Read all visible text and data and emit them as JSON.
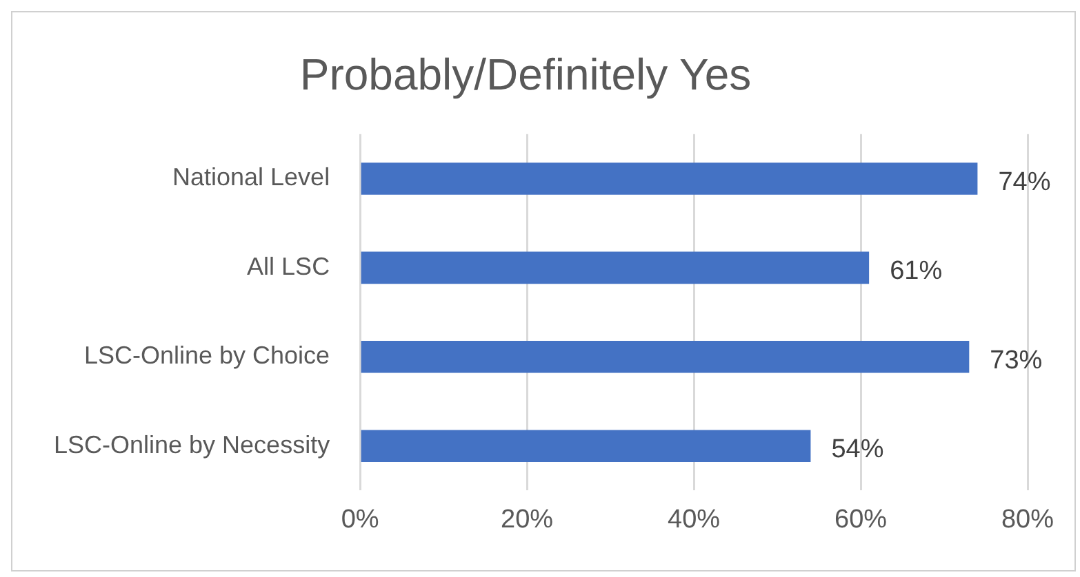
{
  "chart_data": {
    "type": "bar",
    "orientation": "horizontal",
    "title": "Probably/Definitely Yes",
    "categories": [
      "National Level",
      "All LSC",
      "LSC-Online by Choice",
      "LSC-Online by Necessity"
    ],
    "values": [
      74,
      61,
      73,
      54
    ],
    "value_labels": [
      "74%",
      "61%",
      "73%",
      "54%"
    ],
    "color": "#4472c4",
    "xlim": [
      0,
      80
    ],
    "xticks": [
      {
        "value": 0,
        "label": "0%"
      },
      {
        "value": 20,
        "label": "20%"
      },
      {
        "value": 40,
        "label": "40%"
      },
      {
        "value": 60,
        "label": "60%"
      },
      {
        "value": 80,
        "label": "80%"
      }
    ],
    "grid": "x",
    "legend": false
  }
}
